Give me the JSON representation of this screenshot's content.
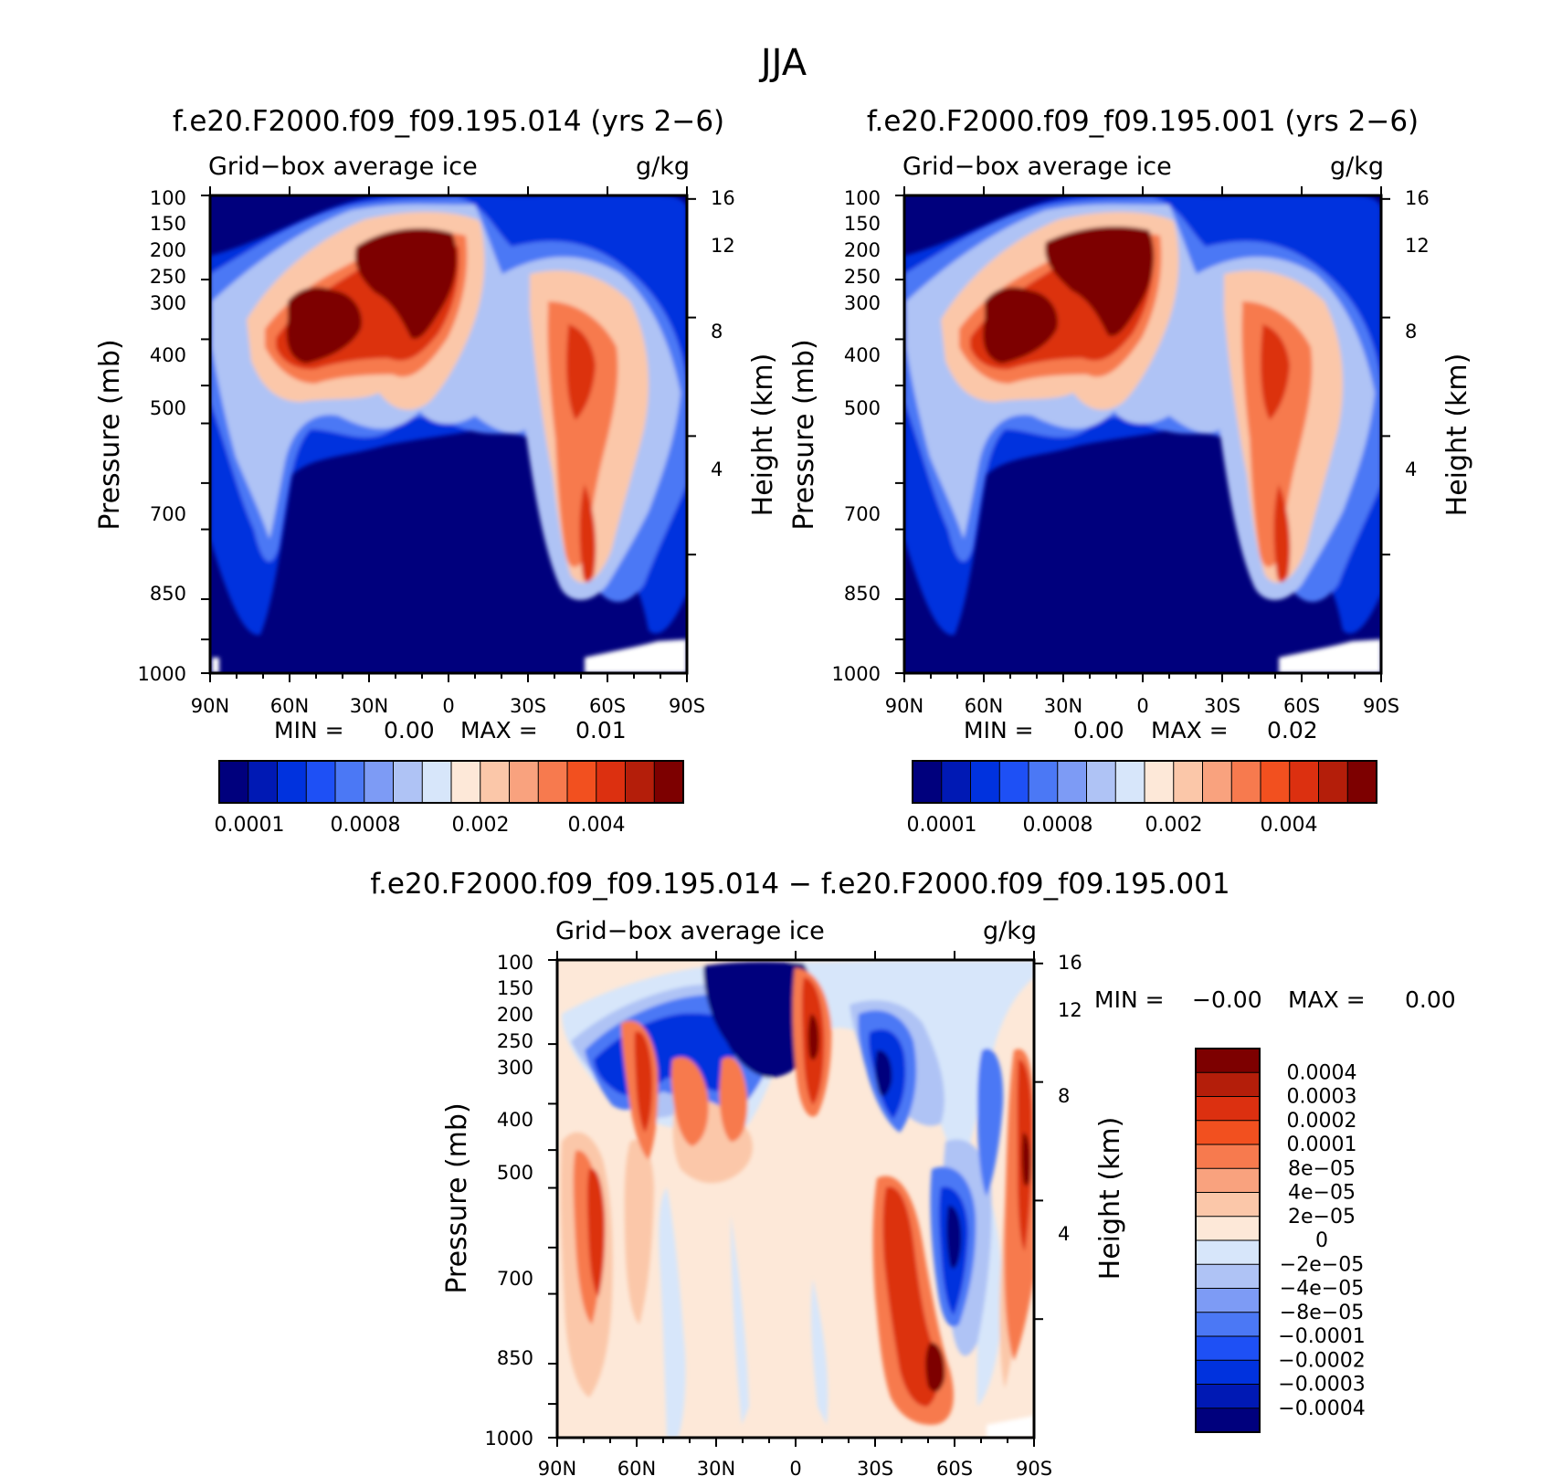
{
  "figure": {
    "title": "JJA"
  },
  "scales": {
    "pressure_ticks": [
      "100",
      "150",
      "200",
      "250",
      "300",
      "400",
      "500",
      "700",
      "850",
      "1000"
    ],
    "pressure_values": [
      100,
      150,
      200,
      250,
      300,
      400,
      500,
      700,
      850,
      1000
    ],
    "height_ticks": [
      "16",
      "12",
      "8",
      "4"
    ],
    "height_values_km": [
      16,
      12,
      8,
      4
    ],
    "lat_ticks": [
      "90N",
      "60N",
      "30N",
      "0",
      "30S",
      "60S",
      "90S"
    ],
    "lat_values": [
      90,
      60,
      30,
      0,
      -30,
      -60,
      -90
    ],
    "ylabel_left": "Pressure (mb)",
    "ylabel_right": "Height (km)"
  },
  "panels": [
    {
      "id": "p1",
      "title": "f.e20.F2000.f09_f09.195.014 (yrs 2−6)",
      "subtitle_left": "Grid−box average ice",
      "subtitle_right": "g/kg",
      "min_label": "MIN =",
      "min_value": "0.00",
      "max_label": "MAX =",
      "max_value": "0.01",
      "colorbar_labels": [
        "0.0001",
        "0.0008",
        "0.002",
        "0.004"
      ]
    },
    {
      "id": "p2",
      "title": "f.e20.F2000.f09_f09.195.001 (yrs 2−6)",
      "subtitle_left": "Grid−box average ice",
      "subtitle_right": "g/kg",
      "min_label": "MIN =",
      "min_value": "0.00",
      "max_label": "MAX =",
      "max_value": "0.02",
      "colorbar_labels": [
        "0.0001",
        "0.0008",
        "0.002",
        "0.004"
      ]
    },
    {
      "id": "p3",
      "title": "f.e20.F2000.f09_f09.195.014 − f.e20.F2000.f09_f09.195.001",
      "subtitle_left": "Grid−box average ice",
      "subtitle_right": "g/kg",
      "min_label": "MIN =",
      "min_value": "−0.00",
      "max_label": "MAX =",
      "max_value": "0.00",
      "colorbar_labels": [
        "0.0004",
        "0.0003",
        "0.0002",
        "0.0001",
        "8e−05",
        "4e−05",
        "2e−05",
        "0",
        "−2e−05",
        "−4e−05",
        "−8e−05",
        "−0.0001",
        "−0.0002",
        "−0.0003",
        "−0.0004"
      ]
    }
  ],
  "colors": {
    "seq": [
      "#00007d",
      "#0019b4",
      "#0032de",
      "#1e50f5",
      "#4b78f5",
      "#7d9bf5",
      "#afc3f5",
      "#d7e6fa",
      "#fde8d8",
      "#fbc7a9",
      "#f9a27e",
      "#f77a4e",
      "#f2501f",
      "#dc3010",
      "#b41e0a",
      "#7d0000"
    ],
    "diverging": [
      "#7d0000",
      "#b41e0a",
      "#dc3010",
      "#f2501f",
      "#f77a4e",
      "#f9a27e",
      "#fbc7a9",
      "#fde8d8",
      "#d7e6fa",
      "#afc3f5",
      "#7d9bf5",
      "#4b78f5",
      "#1e50f5",
      "#0032de",
      "#0019b4",
      "#00007d"
    ]
  },
  "chart_data": [
    {
      "type": "heatmap",
      "panel": "p1",
      "title": "f.e20.F2000.f09_f09.195.014 (yrs 2−6)",
      "variable": "Grid−box average ice",
      "units": "g/kg",
      "x": "latitude 90N to 90S",
      "y": "pressure 100 to 1000 mb",
      "levels": [
        0.0001,
        0.0002,
        0.0004,
        0.0006,
        0.0008,
        0.001,
        0.0012,
        0.0015,
        0.002,
        0.0025,
        0.003,
        0.0035,
        0.004,
        0.0045,
        0.005
      ],
      "features": [
        {
          "lat": 45,
          "p": 350,
          "value": 0.0055
        },
        {
          "lat": 15,
          "p": 250,
          "value": 0.0055
        },
        {
          "lat": -47,
          "p": 380,
          "value": 0.0035
        },
        {
          "lat": -58,
          "p": 780,
          "value": 0.004
        }
      ],
      "min": 0.0,
      "max": 0.01
    },
    {
      "type": "heatmap",
      "panel": "p2",
      "title": "f.e20.F2000.f09_f09.195.001 (yrs 2−6)",
      "variable": "Grid−box average ice",
      "units": "g/kg",
      "x": "latitude 90N to 90S",
      "y": "pressure 100 to 1000 mb",
      "levels": [
        0.0001,
        0.0002,
        0.0004,
        0.0006,
        0.0008,
        0.001,
        0.0012,
        0.0015,
        0.002,
        0.0025,
        0.003,
        0.0035,
        0.004,
        0.0045,
        0.005
      ],
      "features": [
        {
          "lat": 45,
          "p": 350,
          "value": 0.0055
        },
        {
          "lat": 12,
          "p": 250,
          "value": 0.0055
        },
        {
          "lat": -47,
          "p": 380,
          "value": 0.0035
        },
        {
          "lat": -58,
          "p": 780,
          "value": 0.004
        }
      ],
      "min": 0.0,
      "max": 0.02
    },
    {
      "type": "heatmap",
      "panel": "p3",
      "title": "f.e20.F2000.f09_f09.195.014 − f.e20.F2000.f09_f09.195.001",
      "variable": "Grid−box average ice",
      "units": "g/kg",
      "x": "latitude 90N to 90S",
      "y": "pressure 100 to 1000 mb",
      "levels": [
        -0.0004,
        -0.0003,
        -0.0002,
        -0.0001,
        -8e-05,
        -4e-05,
        -2e-05,
        0,
        2e-05,
        4e-05,
        8e-05,
        0.0001,
        0.0002,
        0.0003,
        0.0004
      ],
      "features": [
        {
          "lat": 25,
          "p": 170,
          "value": -0.0004
        },
        {
          "lat": 55,
          "p": 320,
          "value": -0.0002
        },
        {
          "lat": -10,
          "p": 280,
          "value": 0.0003
        },
        {
          "lat": -33,
          "p": 370,
          "value": -0.0003
        },
        {
          "lat": -40,
          "p": 620,
          "value": 0.0003
        },
        {
          "lat": -55,
          "p": 830,
          "value": 0.0004
        },
        {
          "lat": -58,
          "p": 520,
          "value": -0.0004
        },
        {
          "lat": -87,
          "p": 480,
          "value": 0.0003
        }
      ],
      "min": -0.0,
      "max": 0.0
    }
  ]
}
